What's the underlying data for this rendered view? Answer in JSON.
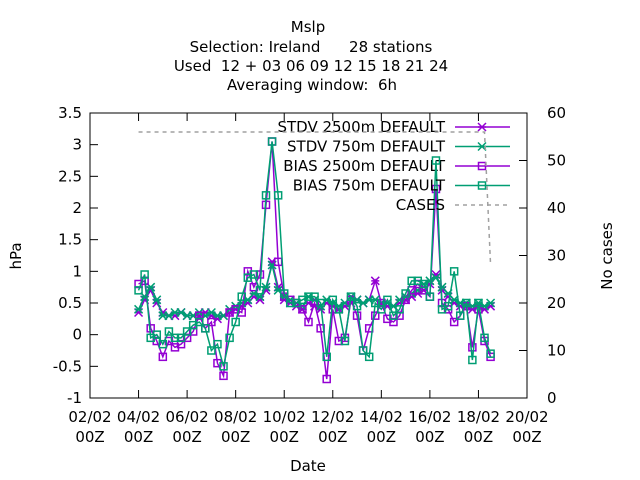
{
  "chart_data": {
    "type": "line",
    "title": [
      "Mslp",
      "Selection: Ireland      28 stations",
      "Used  12 + 03 06 09 12 15 18 21 24",
      "Averaging window:  6h"
    ],
    "xlabel": "Date",
    "ylabel": "hPa",
    "y2label": "No cases",
    "x": [
      4,
      4.25,
      4.5,
      4.75,
      5,
      5.25,
      5.5,
      5.75,
      6,
      6.25,
      6.5,
      6.75,
      7,
      7.25,
      7.5,
      7.75,
      8,
      8.25,
      8.5,
      8.75,
      9,
      9.25,
      9.5,
      9.75,
      10,
      10.25,
      10.5,
      10.75,
      11,
      11.25,
      11.5,
      11.75,
      12,
      12.25,
      12.5,
      12.75,
      13,
      13.25,
      13.5,
      13.75,
      14,
      14.25,
      14.5,
      14.75,
      15,
      15.25,
      15.5,
      15.75,
      16,
      16.25,
      16.5,
      16.75,
      17,
      17.25,
      17.5,
      17.75,
      18,
      18.25,
      18.5
    ],
    "xlim": [
      2,
      20
    ],
    "xticks": [
      {
        "value": 2,
        "label": "02/02\n00Z"
      },
      {
        "value": 4,
        "label": "04/02\n00Z"
      },
      {
        "value": 6,
        "label": "06/02\n00Z"
      },
      {
        "value": 8,
        "label": "08/02\n00Z"
      },
      {
        "value": 10,
        "label": "10/02\n00Z"
      },
      {
        "value": 12,
        "label": "12/02\n00Z"
      },
      {
        "value": 14,
        "label": "14/02\n00Z"
      },
      {
        "value": 16,
        "label": "16/02\n00Z"
      },
      {
        "value": 18,
        "label": "18/02\n00Z"
      },
      {
        "value": 20,
        "label": "20/02\n00Z"
      }
    ],
    "ylim": [
      -1,
      3.5
    ],
    "yticks": [
      -1,
      -0.5,
      0,
      0.5,
      1,
      1.5,
      2,
      2.5,
      3,
      3.5
    ],
    "y2lim": [
      0,
      60
    ],
    "y2ticks": [
      0,
      10,
      20,
      30,
      40,
      50,
      60
    ],
    "series": [
      {
        "name": "STDV 2500m DEFAULT",
        "color": "#9400d3",
        "marker": "star",
        "values": [
          0.35,
          0.55,
          0.7,
          0.5,
          0.35,
          0.3,
          0.3,
          0.35,
          0.3,
          0.3,
          0.3,
          0.35,
          0.3,
          0.25,
          0.3,
          0.35,
          0.4,
          0.45,
          0.5,
          0.6,
          0.55,
          0.7,
          1.15,
          0.75,
          0.55,
          0.5,
          0.45,
          0.4,
          0.5,
          0.45,
          0.4,
          0.5,
          0.45,
          0.4,
          0.45,
          0.5,
          0.55,
          0.5,
          0.55,
          0.85,
          0.5,
          0.45,
          0.45,
          0.5,
          0.55,
          0.6,
          0.65,
          0.7,
          0.8,
          0.95,
          0.7,
          0.6,
          0.5,
          0.45,
          0.45,
          0.4,
          0.45,
          0.4,
          0.45
        ]
      },
      {
        "name": "STDV 750m DEFAULT",
        "color": "#009e73",
        "marker": "star",
        "values": [
          0.4,
          0.6,
          0.75,
          0.55,
          0.3,
          0.3,
          0.35,
          0.35,
          0.3,
          0.3,
          0.35,
          0.3,
          0.35,
          0.3,
          0.3,
          0.4,
          0.45,
          0.5,
          0.55,
          0.65,
          0.6,
          0.75,
          1.1,
          0.7,
          0.6,
          0.55,
          0.5,
          0.45,
          0.6,
          0.55,
          0.45,
          0.55,
          0.5,
          0.45,
          0.5,
          0.6,
          0.55,
          0.5,
          0.55,
          0.55,
          0.5,
          0.5,
          0.45,
          0.55,
          0.6,
          0.65,
          0.7,
          0.8,
          0.85,
          0.9,
          0.75,
          0.65,
          0.55,
          0.5,
          0.5,
          0.45,
          0.5,
          0.45,
          0.5
        ]
      },
      {
        "name": "BIAS 2500m DEFAULT",
        "color": "#9400d3",
        "marker": "square",
        "values": [
          0.8,
          0.85,
          0.1,
          -0.1,
          -0.35,
          -0.1,
          -0.2,
          -0.15,
          -0.05,
          0.05,
          0.3,
          0.1,
          0.2,
          -0.45,
          -0.65,
          0.35,
          0.4,
          0.35,
          1.0,
          0.75,
          0.95,
          2.05,
          3.05,
          1.15,
          0.6,
          0.55,
          0.5,
          0.4,
          0.2,
          0.5,
          0.1,
          -0.7,
          0.4,
          -0.1,
          -0.05,
          0.55,
          0.3,
          -0.25,
          0.1,
          0.3,
          0.5,
          0.25,
          0.2,
          0.3,
          0.55,
          0.7,
          0.8,
          0.7,
          0.6,
          2.3,
          0.5,
          0.4,
          0.2,
          0.3,
          0.45,
          -0.2,
          0.4,
          -0.1,
          -0.35
        ]
      },
      {
        "name": "BIAS 750m DEFAULT",
        "color": "#009e73",
        "marker": "square",
        "values": [
          0.7,
          0.95,
          -0.05,
          0.0,
          -0.15,
          0.05,
          -0.05,
          -0.05,
          0.05,
          0.15,
          0.2,
          0.1,
          -0.25,
          -0.15,
          -0.5,
          -0.05,
          0.2,
          0.6,
          0.9,
          0.95,
          0.7,
          2.2,
          3.05,
          2.2,
          0.65,
          0.5,
          0.5,
          0.55,
          0.6,
          0.6,
          0.5,
          -0.35,
          0.55,
          0.4,
          -0.1,
          0.6,
          0.45,
          -0.25,
          -0.35,
          0.5,
          0.4,
          0.55,
          0.3,
          0.4,
          0.65,
          0.85,
          0.85,
          0.8,
          0.6,
          2.75,
          0.4,
          0.45,
          1.0,
          0.3,
          0.5,
          -0.4,
          0.5,
          -0.05,
          -0.3
        ]
      },
      {
        "name": "CASES",
        "color": "#a0a0a0",
        "marker": "none",
        "dashed": true,
        "axis": "y2",
        "values": [
          56,
          56,
          56,
          56,
          56,
          56,
          56,
          56,
          56,
          56,
          56,
          56,
          56,
          56,
          56,
          56,
          56,
          56,
          56,
          56,
          56,
          56,
          56,
          56,
          56,
          56,
          56,
          56,
          56,
          56,
          56,
          56,
          56,
          56,
          56,
          56,
          56,
          56,
          56,
          56,
          56,
          56,
          56,
          56,
          56,
          56,
          56,
          56,
          56,
          56,
          56,
          56,
          56,
          56,
          56,
          56,
          56,
          56,
          28
        ]
      }
    ]
  }
}
